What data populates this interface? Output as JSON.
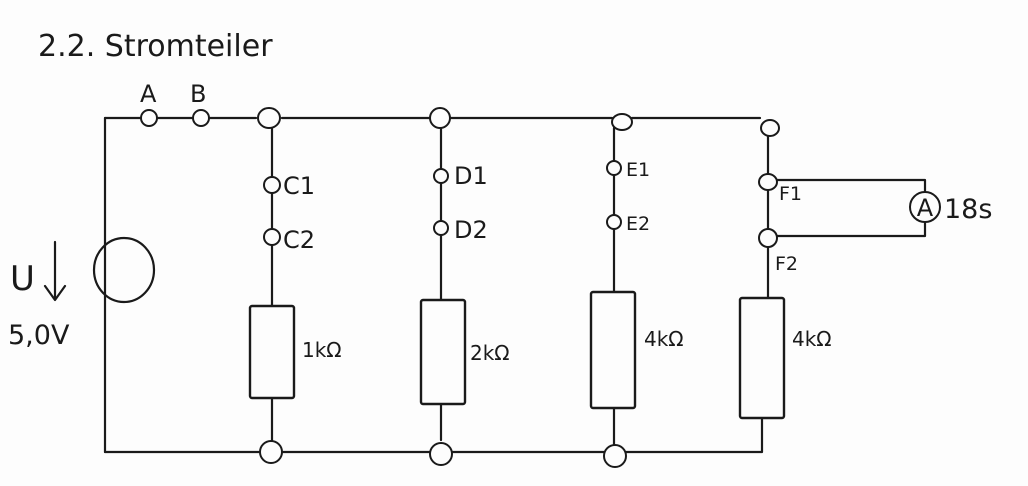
{
  "title": "2.2. Stromteiler",
  "source": {
    "symbol": "U",
    "voltage": "5,0V"
  },
  "nodes": {
    "a": "A",
    "b": "B",
    "c1": "C1",
    "c2": "C2",
    "d1": "D1",
    "d2": "D2",
    "e1": "E1",
    "e2": "E2",
    "f1": "F1",
    "f2": "F2"
  },
  "resistors": [
    "1kΩ",
    "2kΩ",
    "4kΩ",
    "4kΩ"
  ],
  "ammeter": {
    "symbol": "A",
    "reading": "18s"
  }
}
